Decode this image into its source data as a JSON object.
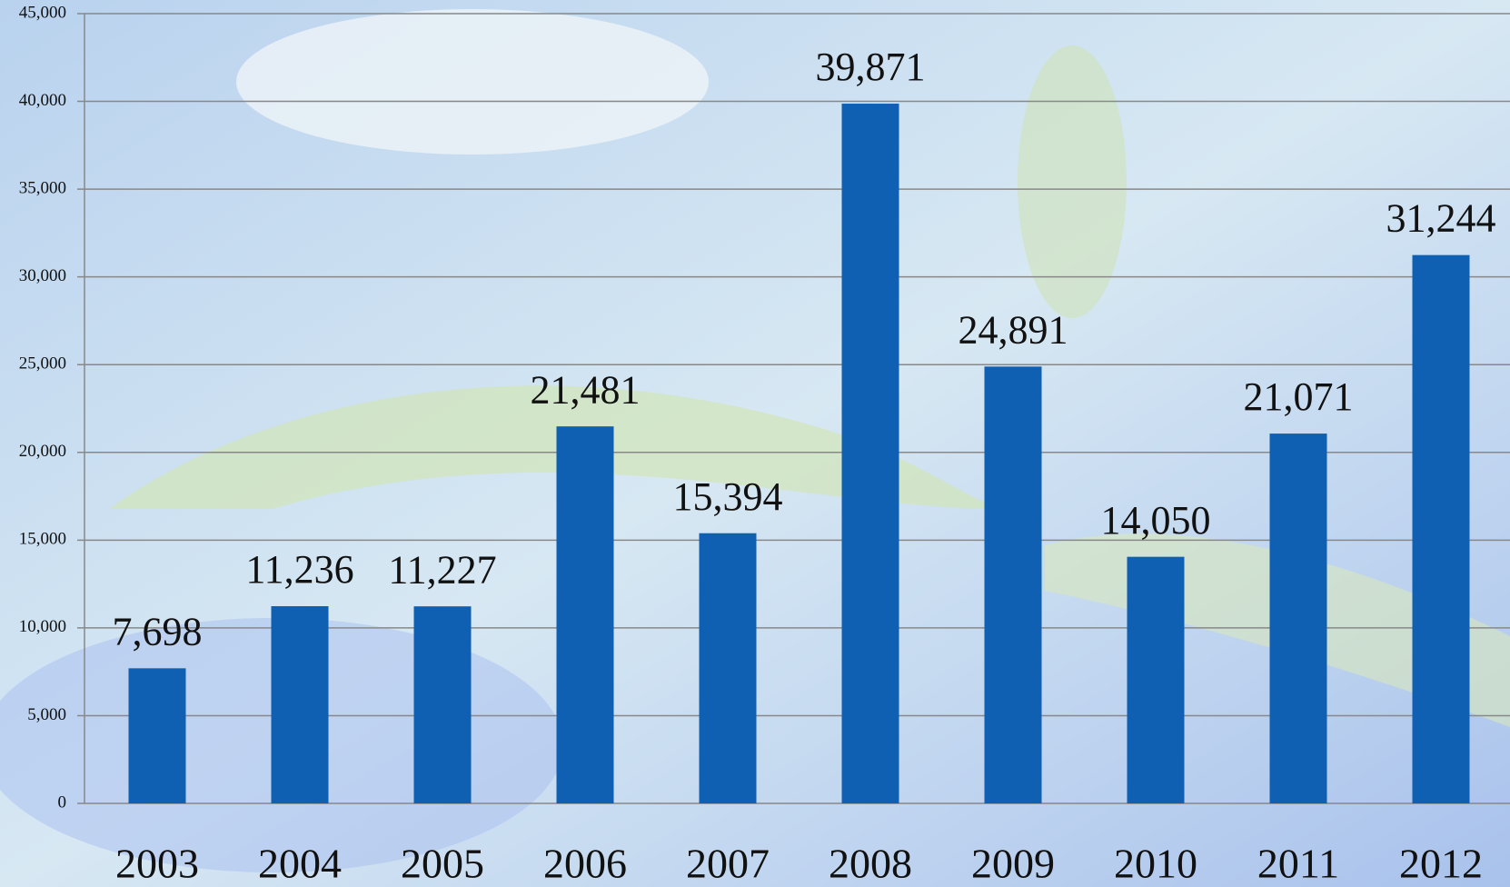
{
  "chart_data": {
    "type": "bar",
    "categories": [
      "2003",
      "2004",
      "2005",
      "2006",
      "2007",
      "2008",
      "2009",
      "2010",
      "2011",
      "2012"
    ],
    "values": [
      7698,
      11236,
      11227,
      21481,
      15394,
      39871,
      24891,
      14050,
      21071,
      31244
    ],
    "value_labels": [
      "7,698",
      "11,236",
      "11,227",
      "21,481",
      "15,394",
      "39,871",
      "24,891",
      "14,050",
      "21,071",
      "31,244"
    ],
    "color": "#0f5fb2",
    "ylim": [
      0,
      45000
    ],
    "yticks": [
      0,
      {
        "value": 5000,
        "label": "5,000"
      },
      {
        "value": 10000,
        "label": "10,000"
      },
      {
        "value": 15000,
        "label": "15,000"
      },
      {
        "value": 20000,
        "label": "20,000"
      },
      {
        "value": 25000,
        "label": "25,000"
      },
      {
        "value": 30000,
        "label": "30,000"
      },
      {
        "value": 35000,
        "label": "35,000"
      },
      {
        "value": 40000,
        "label": "40,000"
      },
      {
        "value": 45000,
        "label": "45,000"
      }
    ],
    "grid": true
  }
}
